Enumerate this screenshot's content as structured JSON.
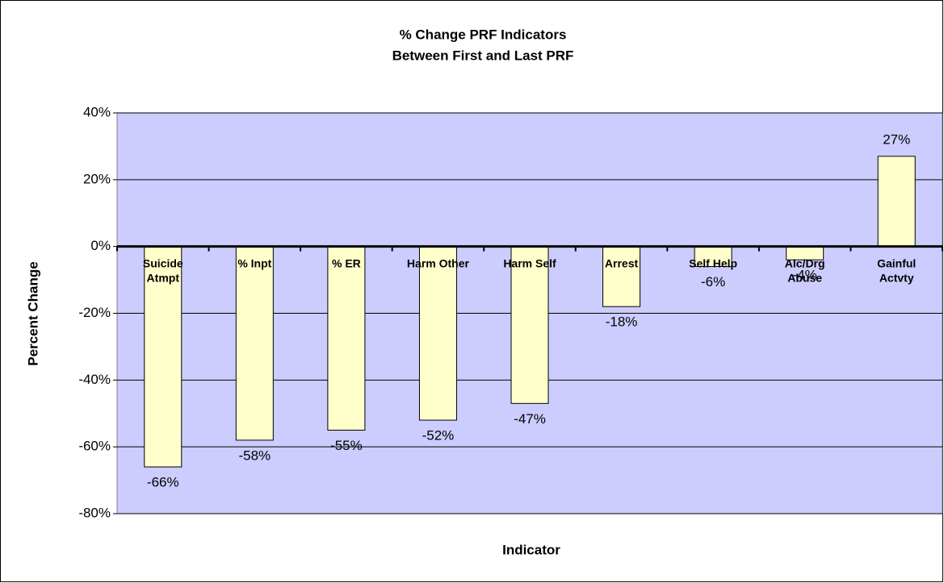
{
  "chart_data": {
    "type": "bar",
    "title": [
      "% Change PRF Indicators",
      "Between First and Last PRF"
    ],
    "x_label": "Indicator",
    "y_label": "Percent Change",
    "categories": [
      [
        "Suicide",
        "Atmpt"
      ],
      [
        "% Inpt"
      ],
      [
        "% ER"
      ],
      [
        "Harm Other"
      ],
      [
        "Harm Self"
      ],
      [
        "Arrest"
      ],
      [
        "Self Help"
      ],
      [
        "Alc/Drg",
        "Abuse"
      ],
      [
        "Gainful",
        "Actvty"
      ]
    ],
    "values": [
      -66,
      -58,
      -55,
      -52,
      -47,
      -18,
      -6,
      -4,
      27
    ],
    "value_labels": [
      "-66%",
      "-58%",
      "-55%",
      "-52%",
      "-47%",
      "-18%",
      "-6%",
      "-4%",
      "27%"
    ],
    "color": "#ffffcc",
    "plot_background": "#ccccff",
    "ylim": [
      -80,
      40
    ],
    "yticks": [
      {
        "value": -80,
        "label": "-80%"
      },
      {
        "value": -60,
        "label": "-60%"
      },
      {
        "value": -40,
        "label": "-40%"
      },
      {
        "value": -20,
        "label": "-20%"
      },
      {
        "value": 0,
        "label": "0%"
      },
      {
        "value": 20,
        "label": "20%"
      },
      {
        "value": 40,
        "label": "40%"
      }
    ],
    "grid": true
  }
}
